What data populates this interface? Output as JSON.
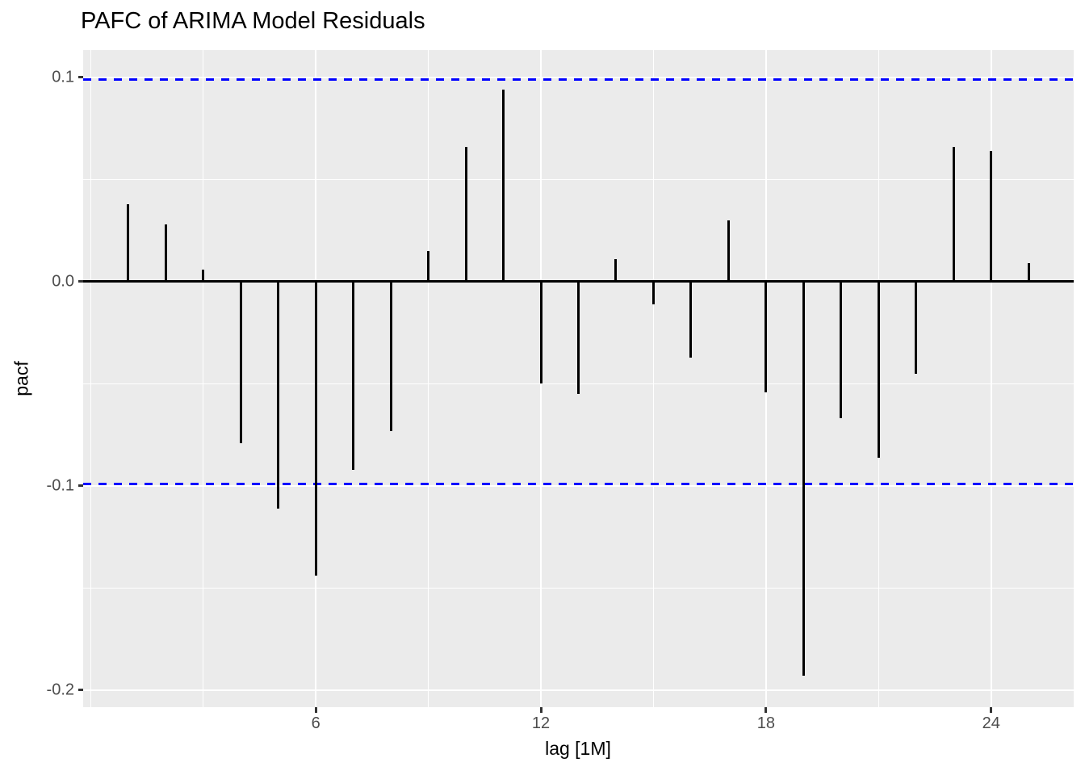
{
  "chart_data": {
    "type": "bar",
    "subtype": "lollipop-pacf",
    "title": "PAFC of ARIMA Model Residuals",
    "xlabel": "lag [1M]",
    "ylabel": "pacf",
    "x": [
      1,
      2,
      3,
      4,
      5,
      6,
      7,
      8,
      9,
      10,
      11,
      12,
      13,
      14,
      15,
      16,
      17,
      18,
      19,
      20,
      21,
      22,
      23,
      24,
      25
    ],
    "values": [
      0.038,
      0.028,
      0.006,
      -0.079,
      -0.111,
      -0.144,
      -0.092,
      -0.073,
      0.015,
      0.066,
      0.094,
      -0.05,
      -0.055,
      0.011,
      -0.011,
      -0.037,
      0.03,
      -0.054,
      -0.193,
      -0.067,
      -0.086,
      -0.045,
      0.066,
      0.064,
      0.009
    ],
    "confidence_bounds": [
      0.099,
      -0.099
    ],
    "xlim": [
      -0.2,
      26.2
    ],
    "ylim": [
      -0.2083,
      0.1134
    ],
    "x_ticks_major": [
      6,
      12,
      18,
      24
    ],
    "x_tick_labels": [
      "6",
      "12",
      "18",
      "24"
    ],
    "x_ticks_minor": [
      0,
      3,
      9,
      15,
      21
    ],
    "y_ticks_major": [
      0.1,
      0.0,
      -0.1,
      -0.2
    ],
    "y_tick_labels": [
      "0.1",
      "0.0",
      "-0.1",
      "-0.2"
    ],
    "y_ticks_minor": [
      0.05,
      -0.05,
      -0.15
    ],
    "grid": true,
    "legend": false,
    "colors": {
      "panel_background": "#EBEBEB",
      "plot_background": "#FFFFFF",
      "gridline": "#FFFFFF",
      "bar": "#000000",
      "zero_line": "#000000",
      "confidence_line": "#0000FF",
      "tick_label": "#4D4D4D",
      "axis_title": "#000000",
      "title": "#000000"
    }
  }
}
